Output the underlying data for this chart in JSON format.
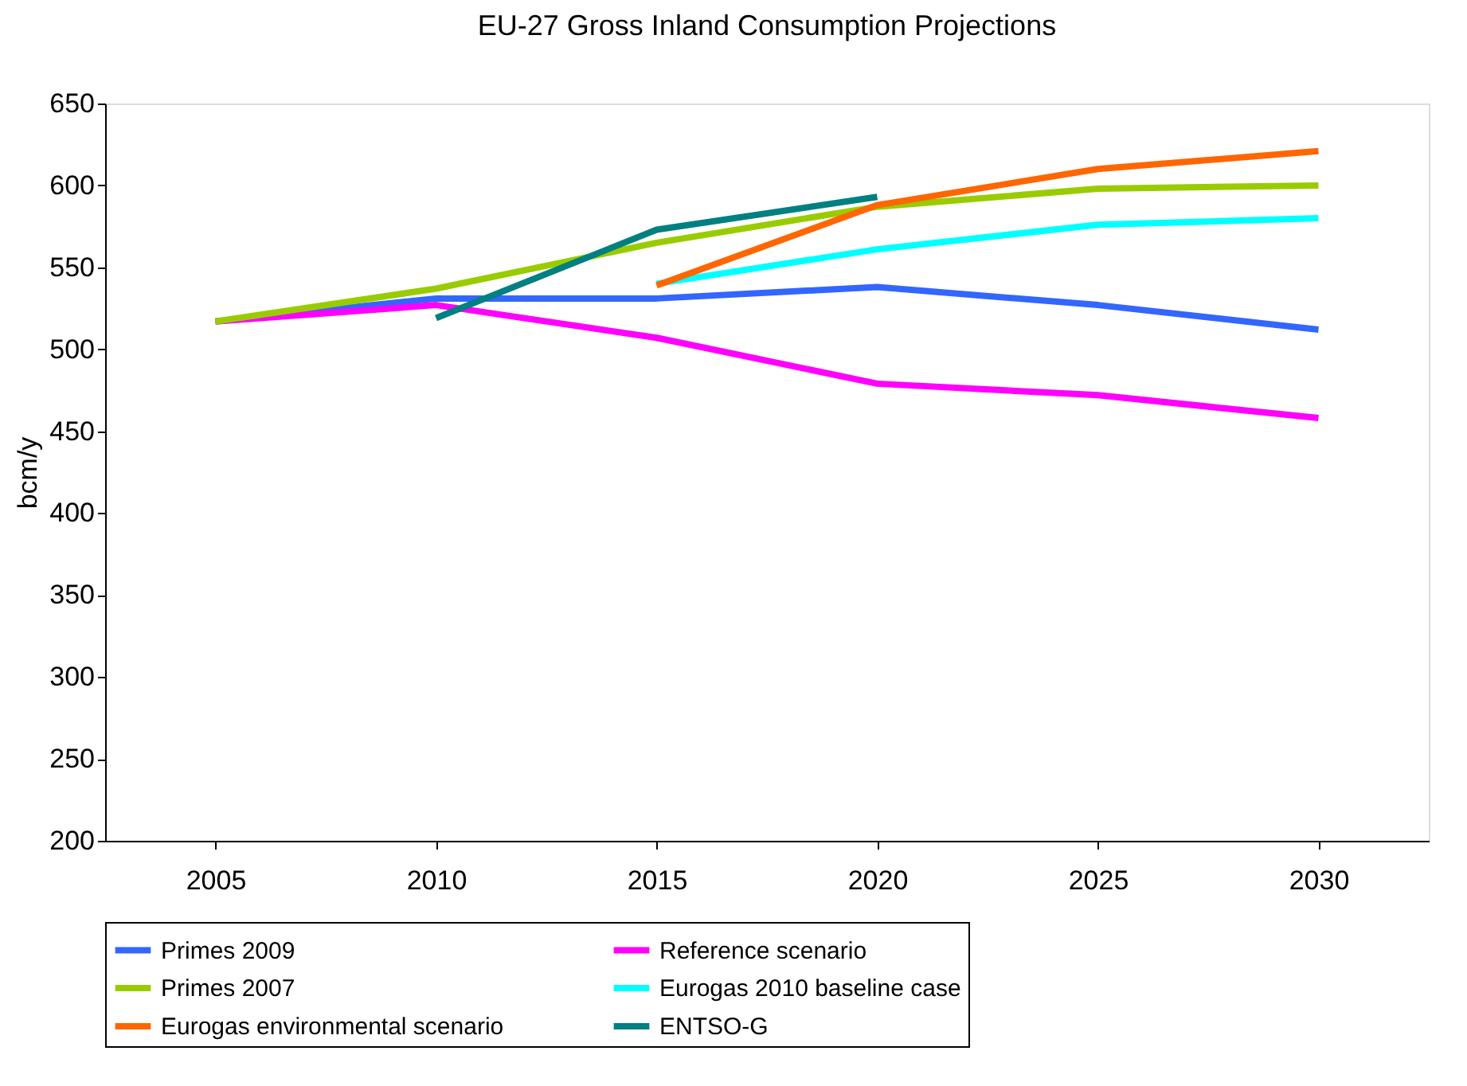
{
  "chart_data": {
    "type": "line",
    "title": "EU-27 Gross Inland Consumption Projections",
    "ylabel": "bcm/y",
    "categories": [
      "2005",
      "2010",
      "2015",
      "2020",
      "2025",
      "2030"
    ],
    "series": [
      {
        "name": "Primes 2009",
        "color": "#3366ff",
        "values": [
          517,
          531,
          531,
          538,
          527,
          512
        ]
      },
      {
        "name": "Reference scenario",
        "color": "#ff00ff",
        "values": [
          517,
          527,
          507,
          479,
          472,
          458
        ]
      },
      {
        "name": "Primes 2007",
        "color": "#99cc00",
        "values": [
          517,
          537,
          565,
          587,
          598,
          600
        ]
      },
      {
        "name": "Eurogas 2010 baseline case",
        "color": "#00ffff",
        "values": [
          null,
          null,
          540,
          561,
          576,
          580
        ]
      },
      {
        "name": "Eurogas environmental scenario",
        "color": "#ff6600",
        "values": [
          null,
          null,
          539,
          588,
          610,
          621
        ]
      },
      {
        "name": "ENTSO-G",
        "color": "#008080",
        "values": [
          null,
          519,
          573,
          593,
          null,
          null
        ]
      }
    ],
    "ylim": [
      200,
      650
    ],
    "yticks": [
      200,
      250,
      300,
      350,
      400,
      450,
      500,
      550,
      600,
      650
    ],
    "grid": false,
    "legend": "bottom",
    "marker": "none",
    "line_style": "solid"
  }
}
